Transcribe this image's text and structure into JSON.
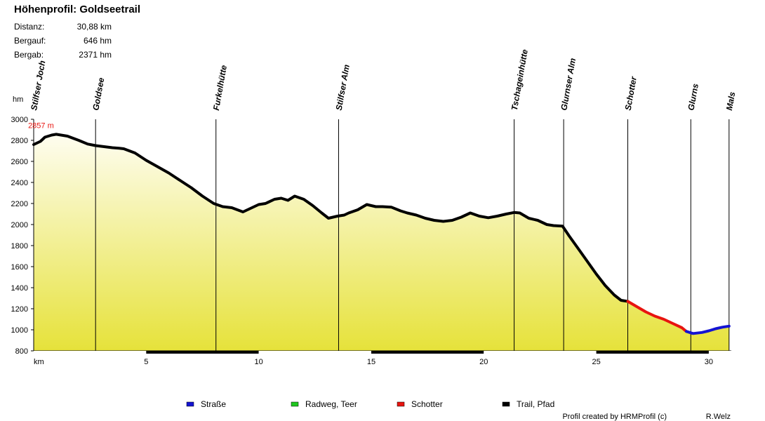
{
  "header": {
    "title": "Höhenprofil: Goldseetrail",
    "stats": [
      {
        "label": "Distanz:",
        "value": "30,88 km"
      },
      {
        "label": "Bergauf:",
        "value": "646 hm"
      },
      {
        "label": "Bergab:",
        "value": "2371 hm"
      }
    ]
  },
  "chart_data": {
    "type": "area",
    "xlabel": "km",
    "ylabel": "hm",
    "xlim": [
      0,
      31
    ],
    "ylim": [
      800,
      3000
    ],
    "x_ticks": [
      5,
      10,
      15,
      20,
      25,
      30
    ],
    "y_ticks": [
      800,
      1000,
      1200,
      1400,
      1600,
      1800,
      2000,
      2200,
      2400,
      2600,
      2800,
      3000
    ],
    "max_annotation": {
      "label": "2857 m",
      "x": 1.0,
      "y": 2857
    },
    "waypoints": [
      {
        "name": "Stilfser Joch",
        "km": 0.0
      },
      {
        "name": "Goldsee",
        "km": 2.75
      },
      {
        "name": "Furkelhütte",
        "km": 8.1
      },
      {
        "name": "Stilfser Alm",
        "km": 13.55
      },
      {
        "name": "Tschageinhütte",
        "km": 21.35
      },
      {
        "name": "Glurnser Alm",
        "km": 23.55
      },
      {
        "name": "Schotter",
        "km": 26.4
      },
      {
        "name": "Glurns",
        "km": 29.2
      },
      {
        "name": "Mals",
        "km": 30.9
      }
    ],
    "series": [
      {
        "name": "Trail, Pfad",
        "color": "#000000",
        "x": [
          0,
          0.3,
          0.5,
          0.8,
          1.0,
          1.5,
          2.0,
          2.4,
          2.75,
          3.5,
          3.8,
          4.0,
          4.5,
          5.0,
          5.5,
          6.0,
          6.5,
          7.0,
          7.5,
          8.0,
          8.4,
          8.8,
          9.3,
          9.7,
          10.0,
          10.3,
          10.7,
          11.0,
          11.3,
          11.6,
          12.0,
          12.4,
          12.8,
          13.1,
          13.5,
          13.8,
          14.0,
          14.4,
          14.8,
          15.2,
          15.5,
          15.9,
          16.3,
          16.6,
          17.0,
          17.4,
          17.8,
          18.2,
          18.6,
          19.0,
          19.4,
          19.8,
          20.2,
          20.6,
          21.0,
          21.35,
          21.6,
          22.0,
          22.4,
          22.8,
          23.1,
          23.5,
          23.8,
          24.2,
          24.6,
          25.0,
          25.4,
          25.8,
          26.1,
          26.4
        ],
        "values": [
          2760,
          2790,
          2830,
          2850,
          2857,
          2840,
          2800,
          2765,
          2750,
          2730,
          2725,
          2720,
          2680,
          2610,
          2550,
          2490,
          2420,
          2350,
          2270,
          2200,
          2170,
          2160,
          2120,
          2160,
          2190,
          2200,
          2240,
          2250,
          2230,
          2270,
          2240,
          2180,
          2110,
          2060,
          2080,
          2090,
          2110,
          2140,
          2190,
          2170,
          2170,
          2165,
          2130,
          2110,
          2090,
          2060,
          2040,
          2030,
          2040,
          2070,
          2110,
          2080,
          2065,
          2080,
          2100,
          2115,
          2110,
          2060,
          2040,
          2000,
          1990,
          1985,
          1890,
          1770,
          1650,
          1530,
          1420,
          1330,
          1280,
          1270
        ]
      },
      {
        "name": "Schotter",
        "color": "#e8140f",
        "x": [
          26.4,
          26.8,
          27.2,
          27.6,
          28.0,
          28.4,
          28.8,
          29.0
        ],
        "values": [
          1270,
          1220,
          1170,
          1130,
          1100,
          1060,
          1020,
          985
        ]
      },
      {
        "name": "Straße",
        "color": "#1414d2",
        "x": [
          29.0,
          29.3,
          29.7,
          30.0,
          30.3,
          30.6,
          30.9
        ],
        "values": [
          985,
          965,
          975,
          990,
          1010,
          1025,
          1035
        ]
      },
      {
        "name": "Radweg, Teer",
        "color": "#1fc81f",
        "x": [],
        "values": []
      }
    ],
    "colors": {
      "fill_top": "#fefdf0",
      "fill_bottom": "#e6e23a",
      "max_label": "#e8140f"
    }
  },
  "legend": [
    {
      "label": "Straße",
      "color": "#1414d2"
    },
    {
      "label": "Radweg, Teer",
      "color": "#1fc81f"
    },
    {
      "label": "Schotter",
      "color": "#e8140f"
    },
    {
      "label": "Trail, Pfad",
      "color": "#000000"
    }
  ],
  "footer": {
    "credit": "Profil created by HRMProfil (c)",
    "author": "R.Welz"
  }
}
